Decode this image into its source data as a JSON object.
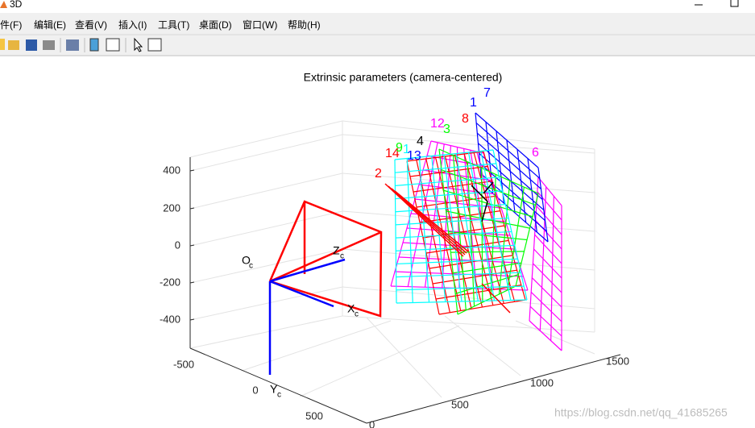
{
  "window": {
    "title": "3D"
  },
  "menu": [
    "文件(F)",
    "编辑(E)",
    "查看(V)",
    "插入(I)",
    "工具(T)",
    "桌面(D)",
    "窗口(W)",
    "帮助(H)"
  ],
  "figure": {
    "title": "Extrinsic parameters (camera-centered)",
    "z_ticks": [
      "400",
      "200",
      "0",
      "-200",
      "-400"
    ],
    "x_ticks": [
      "-500",
      "0",
      "500"
    ],
    "y_ticks": [
      "0",
      "500",
      "1000",
      "1500"
    ],
    "camera_labels": [
      {
        "main": "O",
        "sub": "c"
      },
      {
        "main": "Z",
        "sub": "c"
      },
      {
        "main": "X",
        "sub": "c"
      },
      {
        "main": "Y",
        "sub": "c"
      }
    ],
    "plane_labels": [
      {
        "text": "1",
        "color": "#0000ff"
      },
      {
        "text": "7",
        "color": "#0000ff"
      },
      {
        "text": "12",
        "color": "#ff00ff"
      },
      {
        "text": "3",
        "color": "#00ff00"
      },
      {
        "text": "8",
        "color": "#ff0000"
      },
      {
        "text": "4",
        "color": "#000000"
      },
      {
        "text": "14",
        "color": "#ff0000"
      },
      {
        "text": "9",
        "color": "#00ff00"
      },
      {
        "text": "1",
        "color": "#00ffff"
      },
      {
        "text": "13",
        "color": "#0000ff"
      },
      {
        "text": "2",
        "color": "#ff0000"
      },
      {
        "text": "6",
        "color": "#ff00ff"
      }
    ]
  },
  "watermark": "https://blog.csdn.net/qq_41685265"
}
